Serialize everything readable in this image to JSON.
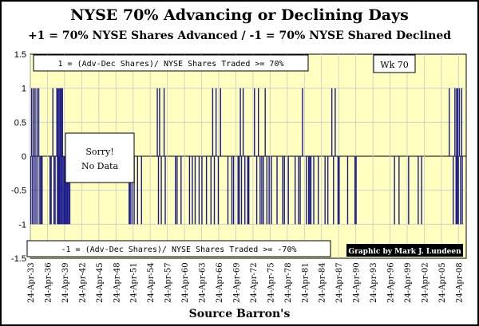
{
  "chart_data": {
    "type": "bar",
    "title": "NYSE 70% Advancing or Declining Days",
    "subtitle": "+1 = 70% NYSE Shares Advanced / -1 = 70% NYSE Shared Declined",
    "xlabel": "Source Barron's",
    "ylabel": "",
    "ylim": [
      -1.5,
      1.5
    ],
    "yticks": [
      "1.5",
      "1",
      "0.5",
      "0",
      "-0.5",
      "-1",
      "-1.5"
    ],
    "xlim": [
      1933.31,
      2010.5
    ],
    "grid": true,
    "xticks": [
      "24-Apr-33",
      "24-Apr-36",
      "24-Apr-39",
      "24-Apr-42",
      "24-Apr-45",
      "24-Apr-48",
      "24-Apr-51",
      "24-Apr-54",
      "24-Apr-57",
      "24-Apr-60",
      "24-Apr-63",
      "24-Apr-66",
      "24-Apr-69",
      "24-Apr-72",
      "24-Apr-75",
      "24-Apr-78",
      "24-Apr-81",
      "24-Apr-84",
      "24-Apr-87",
      "24-Apr-90",
      "24-Apr-93",
      "24-Apr-96",
      "24-Apr-99",
      "24-Apr-02",
      "24-Apr-05",
      "24-Apr-08"
    ],
    "no_data_range": [
      1940.5,
      1950.5
    ],
    "series": [
      {
        "x": [
          1933.4,
          1933.55,
          1933.7,
          1933.85,
          1934.0,
          1934.15,
          1934.3,
          1934.5,
          1934.65,
          1934.8,
          1935.0,
          1935.2,
          1935.4,
          1936.8,
          1937.0,
          1937.3,
          1937.5,
          1937.7,
          1938.0,
          1938.1,
          1938.2,
          1938.3,
          1938.4,
          1938.5,
          1938.6,
          1938.7,
          1938.8,
          1938.9,
          1939.0,
          1939.1,
          1939.3,
          1939.5,
          1939.7,
          1939.9,
          1940.1,
          1940.3,
          1950.8,
          1951.0,
          1951.3,
          1951.7,
          1952.3,
          1953.0,
          1955.8,
          1956.0,
          1956.2,
          1956.5,
          1957.0,
          1957.2,
          1959.0,
          1959.3,
          1960.0,
          1961.5,
          1962.0,
          1962.5,
          1963.2,
          1963.7,
          1964.5,
          1965.3,
          1965.6,
          1965.9,
          1966.2,
          1966.6,
          1967.0,
          1968.3,
          1969.0,
          1969.3,
          1970.1,
          1970.3,
          1970.5,
          1970.7,
          1971.0,
          1971.3,
          1971.8,
          1972.0,
          1973.0,
          1973.4,
          1973.7,
          1974.0,
          1974.3,
          1974.6,
          1974.9,
          1975.2,
          1975.6,
          1976.0,
          1977.0,
          1978.0,
          1978.3,
          1979.0,
          1980.2,
          1980.8,
          1981.1,
          1981.5,
          1982.2,
          1982.6,
          1982.8,
          1983.0,
          1983.5,
          1984.3,
          1985.5,
          1986.0,
          1986.7,
          1987.0,
          1987.3,
          1987.8,
          1988.0,
          1989.5,
          1990.8,
          1991.0,
          1997.8,
          1998.6,
          2000.3,
          2002.0,
          2002.6,
          2007.5,
          2008.2,
          2008.5,
          2008.7,
          2008.8,
          2008.9,
          2009.0,
          2009.1,
          2009.3,
          2009.5,
          2009.7,
          2009.8
        ],
        "values": [
          -1,
          1,
          -1,
          1,
          -1,
          1,
          -1,
          1,
          -1,
          1,
          -1,
          -1,
          -1,
          -1,
          -1,
          1,
          -1,
          -1,
          1,
          -1,
          1,
          -1,
          1,
          -1,
          1,
          -1,
          1,
          -1,
          1,
          -1,
          -1,
          -1,
          -1,
          -1,
          -1,
          -1,
          -1,
          -1,
          -1,
          -1,
          -1,
          -1,
          1,
          -1,
          1,
          -1,
          1,
          -1,
          -1,
          -1,
          -1,
          -1,
          -1,
          -1,
          -1,
          -1,
          -1,
          -1,
          1,
          -1,
          1,
          -1,
          1,
          -1,
          -1,
          -1,
          -1,
          -1,
          1,
          -1,
          1,
          -1,
          -1,
          -1,
          1,
          -1,
          1,
          -1,
          -1,
          -1,
          1,
          -1,
          -1,
          -1,
          -1,
          -1,
          -1,
          -1,
          -1,
          -1,
          -1,
          1,
          -1,
          -1,
          -1,
          -1,
          -1,
          -1,
          -1,
          -1,
          1,
          -1,
          1,
          -1,
          -1,
          -1,
          -1,
          -1,
          -1,
          -1,
          -1,
          -1,
          -1,
          1,
          -1,
          1,
          -1,
          1,
          -1,
          1,
          -1,
          1,
          -1,
          1,
          -1
        ]
      }
    ],
    "annotations": {
      "top_box": "1 = (Adv-Dec Shares)/ NYSE Shares Traded >= 70%",
      "bottom_box": "-1 = (Adv-Dec Shares)/ NYSE Shares Traded >= -70%",
      "week_box": "Wk 70",
      "sorry_line1": "Sorry!",
      "sorry_line2": "No Data",
      "credit": "Graphic by Mark J. Lundeen"
    },
    "colors": {
      "plot_bg": "#ffffc0",
      "bars": "#1a1a8c",
      "grid": "#c8c8c8",
      "credit_bg": "#000000",
      "credit_text": "#ffffff"
    }
  }
}
